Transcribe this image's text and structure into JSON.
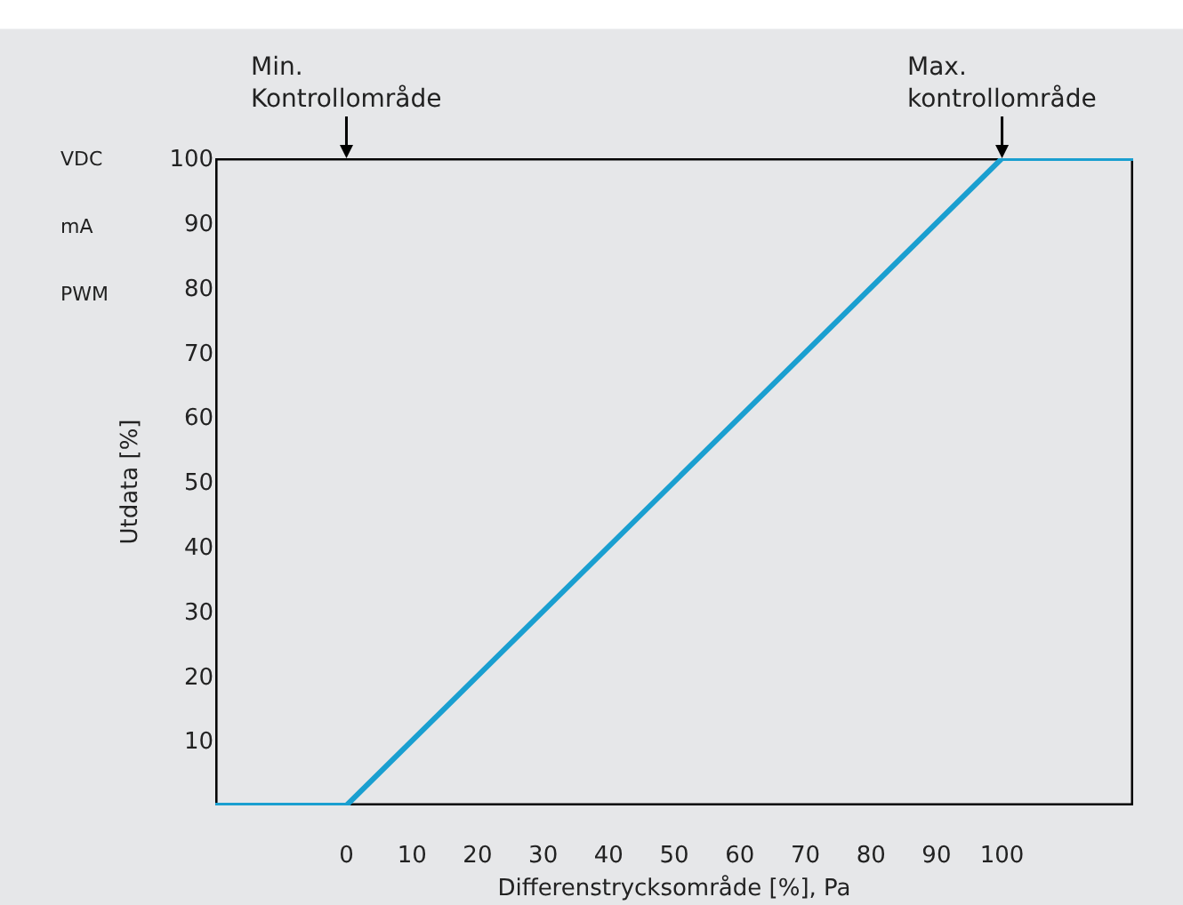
{
  "chart_data": {
    "type": "line",
    "xlabel": "Differenstrycksområde [%], Pa",
    "ylabel": "Utdata [%]",
    "x": [
      -20,
      0,
      100,
      120
    ],
    "series": [
      {
        "color": "#1a9fd0",
        "values": [
          0,
          0,
          100,
          100
        ]
      }
    ],
    "xlim": [
      -20,
      120
    ],
    "xticks": [
      0,
      10,
      20,
      30,
      40,
      50,
      60,
      70,
      80,
      90,
      100
    ],
    "ylim": [
      0,
      100
    ],
    "yticks": [
      10,
      20,
      30,
      40,
      50,
      60,
      70,
      80,
      90,
      100
    ],
    "grid": false,
    "marker": "none",
    "line_style": "solid",
    "annotations": [
      "Min.\nKontrollområde",
      {
        "text": "Max.\nkontrollområde",
        "x": 100,
        "y": 100
      },
      "VDC",
      "mA",
      "PWM"
    ]
  }
}
